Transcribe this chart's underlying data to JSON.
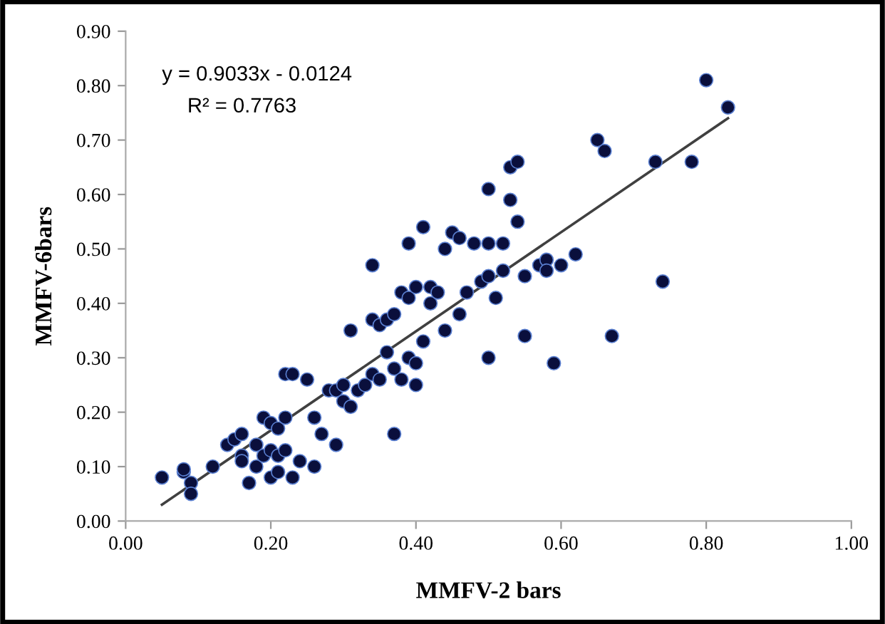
{
  "chart_data": {
    "type": "scatter",
    "xlabel": "MMFV-2 bars",
    "ylabel": "MMFV-6bars",
    "annotations": [
      "y = 0.9033x - 0.0124",
      "R² = 0.7763"
    ],
    "xlim": [
      0,
      1
    ],
    "ylim": [
      0,
      0.9
    ],
    "xticks": [
      {
        "value": 0,
        "label": "0.00"
      },
      {
        "value": 0.2,
        "label": "0.20"
      },
      {
        "value": 0.4,
        "label": "0.40"
      },
      {
        "value": 0.6,
        "label": "0.60"
      },
      {
        "value": 0.8,
        "label": "0.80"
      },
      {
        "value": 1,
        "label": "1.00"
      }
    ],
    "yticks": [
      {
        "value": 0,
        "label": "0.00"
      },
      {
        "value": 0.1,
        "label": "0.10"
      },
      {
        "value": 0.2,
        "label": "0.20"
      },
      {
        "value": 0.3,
        "label": "0.30"
      },
      {
        "value": 0.4,
        "label": "0.40"
      },
      {
        "value": 0.5,
        "label": "0.50"
      },
      {
        "value": 0.6,
        "label": "0.60"
      },
      {
        "value": 0.7,
        "label": "0.70"
      },
      {
        "value": 0.8,
        "label": "0.80"
      },
      {
        "value": 0.9,
        "label": "0.90"
      }
    ],
    "grid": false,
    "legend": false,
    "series": [
      {
        "marker": "circle",
        "color": "#0a0f3c",
        "x": [
          0.05,
          0.08,
          0.09,
          0.09,
          0.08,
          0.12,
          0.14,
          0.15,
          0.16,
          0.16,
          0.16,
          0.17,
          0.18,
          0.18,
          0.19,
          0.19,
          0.2,
          0.2,
          0.2,
          0.21,
          0.21,
          0.21,
          0.22,
          0.23,
          0.22,
          0.22,
          0.23,
          0.24,
          0.25,
          0.26,
          0.26,
          0.27,
          0.28,
          0.29,
          0.29,
          0.3,
          0.3,
          0.31,
          0.31,
          0.32,
          0.33,
          0.34,
          0.34,
          0.34,
          0.35,
          0.35,
          0.36,
          0.36,
          0.37,
          0.37,
          0.37,
          0.38,
          0.38,
          0.39,
          0.39,
          0.39,
          0.4,
          0.4,
          0.4,
          0.41,
          0.41,
          0.42,
          0.42,
          0.43,
          0.44,
          0.44,
          0.45,
          0.46,
          0.46,
          0.47,
          0.48,
          0.49,
          0.5,
          0.5,
          0.5,
          0.5,
          0.51,
          0.52,
          0.52,
          0.53,
          0.53,
          0.54,
          0.54,
          0.55,
          0.55,
          0.57,
          0.58,
          0.58,
          0.59,
          0.6,
          0.62,
          0.65,
          0.66,
          0.67,
          0.73,
          0.74,
          0.78,
          0.8,
          0.83
        ],
        "values": [
          0.08,
          0.09,
          0.07,
          0.05,
          0.095,
          0.1,
          0.14,
          0.15,
          0.16,
          0.12,
          0.11,
          0.07,
          0.14,
          0.1,
          0.12,
          0.19,
          0.18,
          0.08,
          0.13,
          0.12,
          0.17,
          0.09,
          0.27,
          0.27,
          0.19,
          0.13,
          0.08,
          0.11,
          0.26,
          0.1,
          0.19,
          0.16,
          0.24,
          0.14,
          0.24,
          0.25,
          0.22,
          0.35,
          0.21,
          0.24,
          0.25,
          0.27,
          0.47,
          0.37,
          0.36,
          0.26,
          0.37,
          0.31,
          0.16,
          0.38,
          0.28,
          0.42,
          0.26,
          0.41,
          0.51,
          0.3,
          0.43,
          0.29,
          0.25,
          0.54,
          0.33,
          0.4,
          0.43,
          0.42,
          0.5,
          0.35,
          0.53,
          0.52,
          0.38,
          0.42,
          0.51,
          0.44,
          0.61,
          0.51,
          0.45,
          0.3,
          0.41,
          0.51,
          0.46,
          0.65,
          0.59,
          0.66,
          0.55,
          0.45,
          0.34,
          0.47,
          0.48,
          0.46,
          0.29,
          0.47,
          0.49,
          0.7,
          0.68,
          0.34,
          0.66,
          0.44,
          0.66,
          0.81,
          0.76
        ]
      },
      {
        "type": "line",
        "color": "#404040",
        "x": [
          0.05,
          0.83
        ],
        "values": [
          0.03,
          0.74
        ],
        "marker": "none"
      }
    ]
  }
}
